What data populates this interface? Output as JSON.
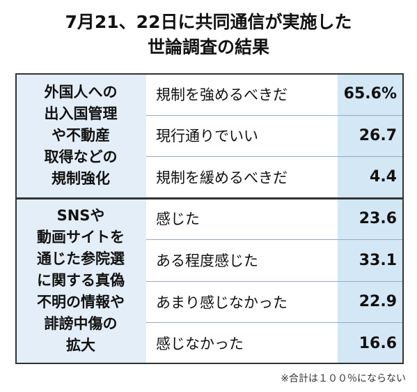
{
  "header": {
    "title_lines": [
      "7月21、22日に共同通信が実施した",
      "世論調査の結果"
    ]
  },
  "table": {
    "groups": [
      {
        "topic_lines": [
          "外国人への",
          "出入国管理",
          "や不動産",
          "取得などの",
          "規制強化"
        ],
        "rows": [
          [
            "規制を強めるべきだ",
            "65.6%"
          ],
          [
            "現行通りでいい",
            "26.7"
          ],
          [
            "規制を緩めるべきだ",
            "4.4"
          ]
        ]
      },
      {
        "topic_lines": [
          "SNSや",
          "動画サイトを",
          "通じた参院選",
          "に関する真偽",
          "不明の情報や",
          "誹謗中傷の",
          "拡大"
        ],
        "rows": [
          [
            "感じた",
            "23.6"
          ],
          [
            "ある程度感じた",
            "33.1"
          ],
          [
            "あまり感じなかった",
            "22.9"
          ],
          [
            "感じなかった",
            "16.6"
          ]
        ]
      }
    ]
  },
  "footnote": "※合計は１００％にならない"
}
